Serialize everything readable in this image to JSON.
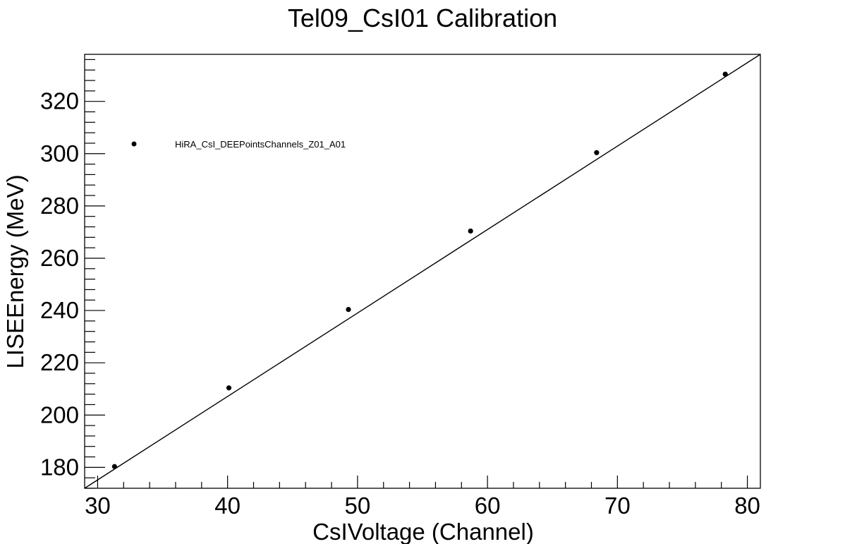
{
  "chart_data": {
    "type": "scatter",
    "title": "Tel09_CsI01 Calibration",
    "xlabel": "CsIVoltage (Channel)",
    "ylabel": "LISEEnergy (MeV)",
    "xlim": [
      29,
      81
    ],
    "ylim": [
      172,
      338
    ],
    "x_major_ticks": [
      30,
      40,
      50,
      60,
      70,
      80
    ],
    "x_tick_labels": [
      "30",
      "40",
      "50",
      "60",
      "70",
      "80"
    ],
    "y_major_ticks": [
      180,
      200,
      220,
      240,
      260,
      280,
      300,
      320
    ],
    "y_tick_labels": [
      "180",
      "200",
      "220",
      "240",
      "260",
      "280",
      "300",
      "320"
    ],
    "legend": {
      "placement": "top-left",
      "entries": [
        {
          "label": "HiRA_CsI_DEEPointsChannels_Z01_A01",
          "marker": "filled-circle"
        }
      ]
    },
    "series": [
      {
        "name": "HiRA_CsI_DEEPointsChannels_Z01_A01",
        "marker": "filled-circle",
        "color": "#000000",
        "points": [
          {
            "x": 31.3,
            "y": 180.3
          },
          {
            "x": 40.1,
            "y": 210.4
          },
          {
            "x": 49.3,
            "y": 240.4
          },
          {
            "x": 58.7,
            "y": 270.4
          },
          {
            "x": 68.4,
            "y": 300.4
          },
          {
            "x": 78.3,
            "y": 330.4
          }
        ]
      }
    ],
    "fit_line": {
      "color": "#000000",
      "from": {
        "x": 29,
        "y": 172
      },
      "to": {
        "x": 81,
        "y": 338
      }
    },
    "grid": false
  }
}
